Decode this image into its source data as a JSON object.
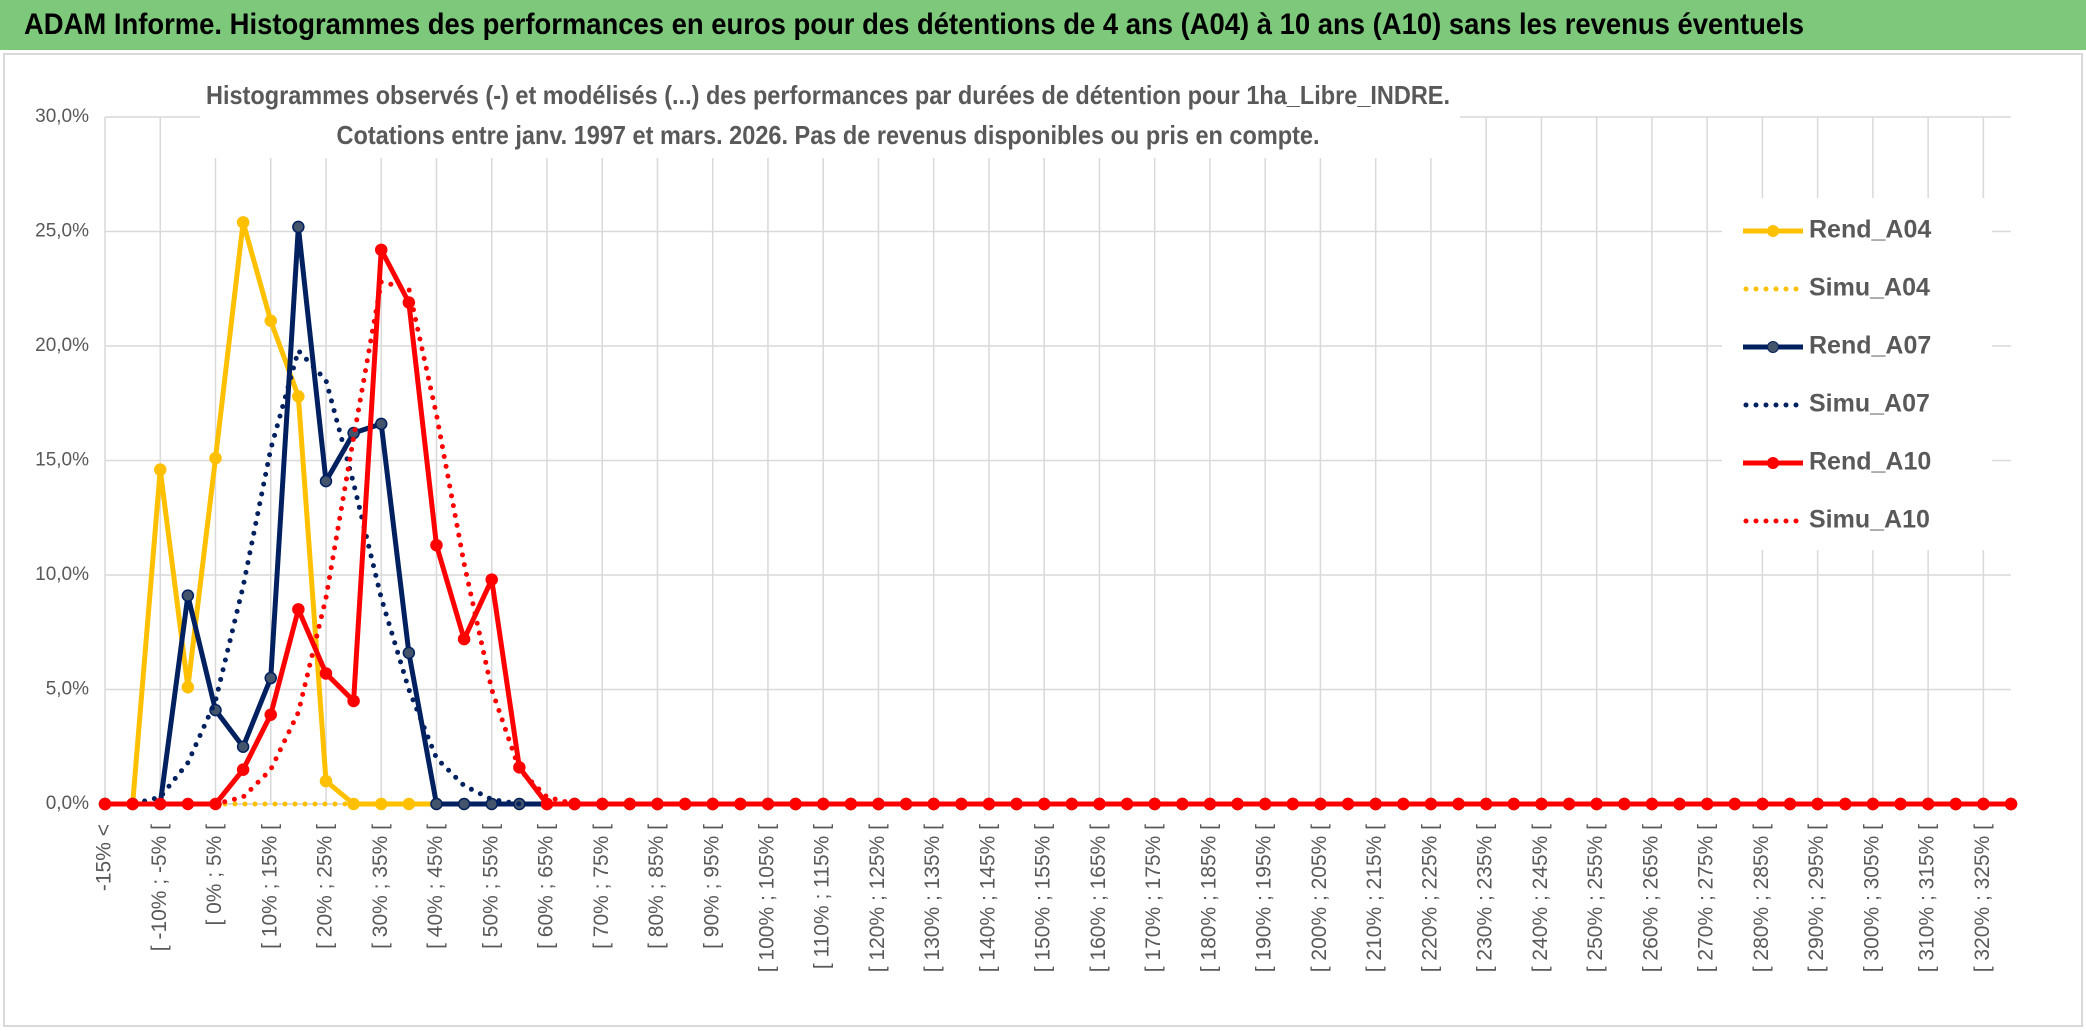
{
  "chart_data": {
    "type": "line",
    "title": "ADAM Informe. Histogrammes des performances en euros pour des détentions de 4 ans (A04) à 10 ans (A10) sans les revenus éventuels",
    "subtitle": [
      "Histogrammes observés (-) et modélisés (...) des performances par durées de détention pour 1ha_Libre_INDRE.",
      "Cotations entre janv. 1997 et mars. 2026. Pas de revenus disponibles ou pris en compte."
    ],
    "categories": [
      "-15% <",
      null,
      "[ -10% ; -5% [",
      null,
      "[ 0% ; 5% [",
      null,
      "[ 10% ; 15% [",
      null,
      "[ 20% ; 25% [",
      null,
      "[ 30% ; 35% [",
      null,
      "[ 40% ; 45% [",
      null,
      "[ 50% ; 55% [",
      null,
      "[ 60% ; 65% [",
      null,
      "[ 70% ; 75% [",
      null,
      "[ 80% ; 85% [",
      null,
      "[ 90% ; 95% [",
      null,
      "[ 100% ; 105% [",
      null,
      "[ 110% ; 115% [",
      null,
      "[ 120% ; 125% [",
      null,
      "[ 130% ; 135% [",
      null,
      "[ 140% ; 145% [",
      null,
      "[ 150% ; 155% [",
      null,
      "[ 160% ; 165% [",
      null,
      "[ 170% ; 175% [",
      null,
      "[ 180% ; 185% [",
      null,
      "[ 190% ; 195% [",
      null,
      "[ 200% ; 205% [",
      null,
      "[ 210% ; 215% [",
      null,
      "[ 220% ; 225% [",
      null,
      "[ 230% ; 235% [",
      null,
      "[ 240% ; 245% [",
      null,
      "[ 250% ; 255% [",
      null,
      "[ 260% ; 265% [",
      null,
      "[ 270% ; 275% [",
      null,
      "[ 280% ; 285% [",
      null,
      "[ 290% ; 295% [",
      null,
      "[ 300% ; 305% [",
      null,
      "[ 310% ; 315% [",
      null,
      "[ 320% ; 325% [",
      null
    ],
    "series": [
      {
        "name": "Rend_A04",
        "color": "#FFC000",
        "style": "solid",
        "markers": true,
        "values": [
          0,
          0,
          14.6,
          5.1,
          15.1,
          25.4,
          21.1,
          17.8,
          1.0,
          0,
          0,
          0,
          0,
          0,
          0,
          0,
          0,
          0,
          0,
          0,
          0,
          0,
          0,
          0,
          0,
          0,
          0,
          0,
          0,
          0,
          0,
          0,
          0,
          0,
          0,
          0,
          0,
          0,
          0,
          0,
          0,
          0,
          0,
          0,
          0,
          0,
          0,
          0,
          0,
          0,
          0,
          0,
          0,
          0,
          0,
          0,
          0,
          0,
          0,
          0,
          0,
          0,
          0,
          0,
          0,
          0,
          0,
          0,
          0,
          0
        ]
      },
      {
        "name": "Simu_A04",
        "color": "#FFC000",
        "style": "dotted",
        "markers": false,
        "values": [
          0,
          0,
          0,
          0,
          0,
          0,
          0,
          0,
          0,
          0,
          0,
          0,
          0,
          0,
          0,
          0,
          0,
          0,
          0,
          0,
          0,
          0,
          0,
          0,
          0,
          0,
          0,
          0,
          0,
          0,
          0,
          0,
          0,
          0,
          0,
          0,
          0,
          0,
          0,
          0,
          0,
          0,
          0,
          0,
          0,
          0,
          0,
          0,
          0,
          0,
          0,
          0,
          0,
          0,
          0,
          0,
          0,
          0,
          0,
          0,
          0,
          0,
          0,
          0,
          0,
          0,
          0,
          0,
          0,
          0
        ]
      },
      {
        "name": "Rend_A07",
        "color": "#002060",
        "style": "solid",
        "markers": true,
        "values": [
          0,
          0,
          0,
          9.1,
          4.1,
          2.5,
          5.5,
          25.2,
          14.1,
          16.2,
          16.6,
          6.6,
          0,
          0,
          0,
          0,
          0,
          0,
          0,
          0,
          0,
          0,
          0,
          0,
          0,
          0,
          0,
          0,
          0,
          0,
          0,
          0,
          0,
          0,
          0,
          0,
          0,
          0,
          0,
          0,
          0,
          0,
          0,
          0,
          0,
          0,
          0,
          0,
          0,
          0,
          0,
          0,
          0,
          0,
          0,
          0,
          0,
          0,
          0,
          0,
          0,
          0,
          0,
          0,
          0,
          0,
          0,
          0,
          0,
          0
        ]
      },
      {
        "name": "Simu_A07",
        "color": "#002060",
        "style": "dotted",
        "markers": false,
        "values": [
          0,
          0,
          0.3,
          1.8,
          4.5,
          9.5,
          15.5,
          19.8,
          18.5,
          14,
          9,
          5,
          2,
          0.8,
          0.2,
          0,
          0,
          0,
          0,
          0,
          0,
          0,
          0,
          0,
          0,
          0,
          0,
          0,
          0,
          0,
          0,
          0,
          0,
          0,
          0,
          0,
          0,
          0,
          0,
          0,
          0,
          0,
          0,
          0,
          0,
          0,
          0,
          0,
          0,
          0,
          0,
          0,
          0,
          0,
          0,
          0,
          0,
          0,
          0,
          0,
          0,
          0,
          0,
          0,
          0,
          0,
          0,
          0,
          0,
          0
        ]
      },
      {
        "name": "Rend_A10",
        "color": "#FF0000",
        "style": "solid",
        "markers": true,
        "values": [
          0,
          0,
          0,
          0,
          0,
          1.5,
          3.9,
          8.5,
          5.7,
          4.5,
          24.2,
          21.9,
          11.3,
          7.2,
          9.8,
          1.6,
          0,
          0,
          0,
          0,
          0,
          0,
          0,
          0,
          0,
          0,
          0,
          0,
          0,
          0,
          0,
          0,
          0,
          0,
          0,
          0,
          0,
          0,
          0,
          0,
          0,
          0,
          0,
          0,
          0,
          0,
          0,
          0,
          0,
          0,
          0,
          0,
          0,
          0,
          0,
          0,
          0,
          0,
          0,
          0,
          0,
          0,
          0,
          0,
          0,
          0,
          0,
          0,
          0,
          0
        ]
      },
      {
        "name": "Simu_A10",
        "color": "#FF0000",
        "style": "dotted",
        "markers": false,
        "values": [
          0,
          0,
          0,
          0,
          0,
          0.3,
          1.5,
          4,
          9,
          16,
          22.8,
          22.5,
          17,
          10.5,
          5,
          1.5,
          0.3,
          0,
          0,
          0,
          0,
          0,
          0,
          0,
          0,
          0,
          0,
          0,
          0,
          0,
          0,
          0,
          0,
          0,
          0,
          0,
          0,
          0,
          0,
          0,
          0,
          0,
          0,
          0,
          0,
          0,
          0,
          0,
          0,
          0,
          0,
          0,
          0,
          0,
          0,
          0,
          0,
          0,
          0,
          0,
          0,
          0,
          0,
          0,
          0,
          0,
          0,
          0,
          0,
          0
        ]
      }
    ],
    "ylim": [
      0,
      30
    ],
    "yticks": [
      {
        "value": 0,
        "label": "0,0%"
      },
      {
        "value": 5,
        "label": "5,0%"
      },
      {
        "value": 10,
        "label": "10,0%"
      },
      {
        "value": 15,
        "label": "15,0%"
      },
      {
        "value": 20,
        "label": "20,0%"
      },
      {
        "value": 25,
        "label": "25,0%"
      },
      {
        "value": 30,
        "label": "30,0%"
      }
    ],
    "grid": true,
    "legend": "right"
  }
}
